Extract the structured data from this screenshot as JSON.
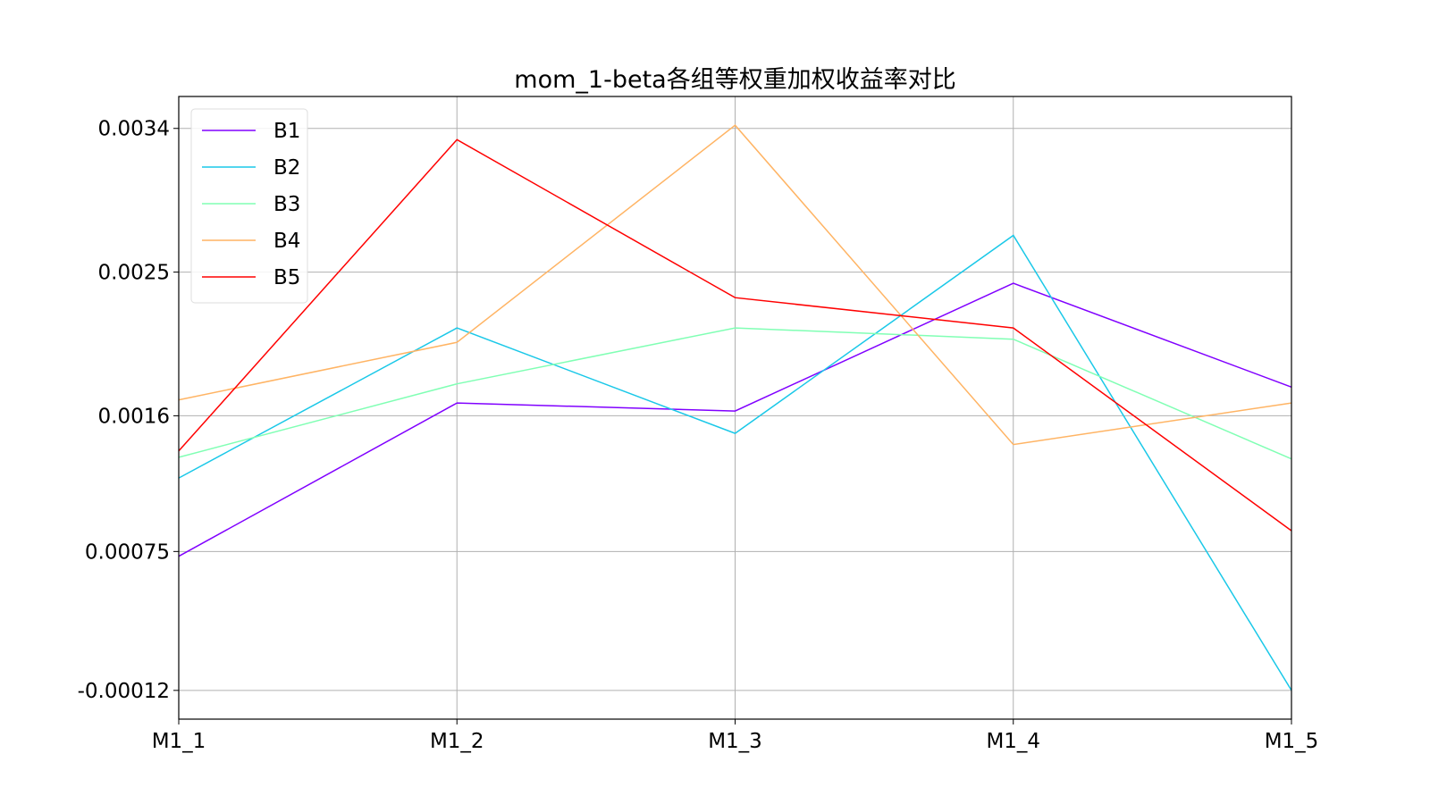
{
  "chart_data": {
    "type": "line",
    "title": "mom_1-beta各组等权重加权收益率对比",
    "xlabel": "",
    "ylabel": "",
    "categories": [
      "M1_1",
      "M1_2",
      "M1_3",
      "M1_4",
      "M1_5"
    ],
    "yticks": [
      -0.00012,
      0.00075,
      0.0016,
      0.0025,
      0.0034
    ],
    "ytick_labels": [
      "-0.00012",
      "0.00075",
      "0.0016",
      "0.0025",
      "0.0034"
    ],
    "ylim": [
      -0.0003,
      0.0036
    ],
    "grid": true,
    "legend_position": "top-left",
    "series": [
      {
        "name": "B1",
        "color": "#8000ff",
        "values": [
          0.00072,
          0.00168,
          0.00163,
          0.00243,
          0.00178
        ]
      },
      {
        "name": "B2",
        "color": "#1ac8e8",
        "values": [
          0.00121,
          0.00215,
          0.00149,
          0.00273,
          -0.00012
        ]
      },
      {
        "name": "B3",
        "color": "#80ffb4",
        "values": [
          0.00134,
          0.0018,
          0.00215,
          0.00208,
          0.00133
        ]
      },
      {
        "name": "B4",
        "color": "#ffb464",
        "values": [
          0.0017,
          0.00206,
          0.00342,
          0.00142,
          0.00168
        ]
      },
      {
        "name": "B5",
        "color": "#ff0000",
        "values": [
          0.00138,
          0.00333,
          0.00234,
          0.00215,
          0.00088
        ]
      }
    ]
  }
}
